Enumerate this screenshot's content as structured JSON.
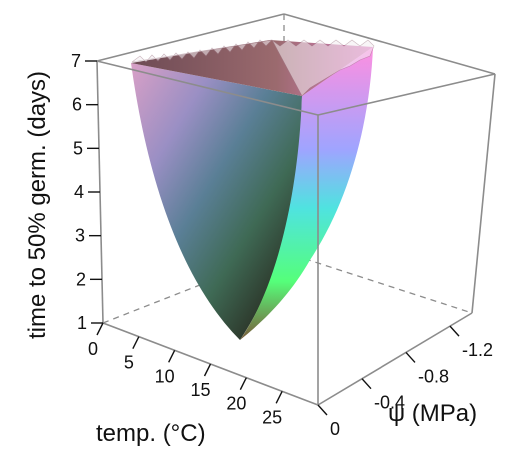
{
  "chart_data": {
    "type": "surface3d",
    "title": "",
    "z_axis": {
      "label": "time to 50% germ. (days)",
      "ticks": [
        1,
        2,
        3,
        4,
        5,
        6,
        7
      ],
      "range": [
        1,
        7
      ]
    },
    "x_axis": {
      "label": "temp. (°C)",
      "ticks": [
        0,
        5,
        10,
        15,
        20,
        25
      ],
      "range": [
        0,
        30
      ]
    },
    "y_axis": {
      "label": "ψ (MPa)",
      "tick_labels": [
        "0",
        "-0.4",
        "-0.8",
        "-1.2"
      ],
      "ticks": [
        0,
        -0.4,
        -0.8,
        -1.2
      ],
      "range": [
        0,
        -1.4
      ]
    },
    "surface": {
      "description_points": [
        {
          "temp": 20,
          "psi": 0,
          "days": 1.0
        },
        {
          "temp": 0,
          "psi": 0,
          "days": 7.0
        },
        {
          "temp": 30,
          "psi": -1.4,
          "days": 7.0
        }
      ],
      "clipped_at_days": 7,
      "coloring": "rgb by normal direction"
    }
  }
}
